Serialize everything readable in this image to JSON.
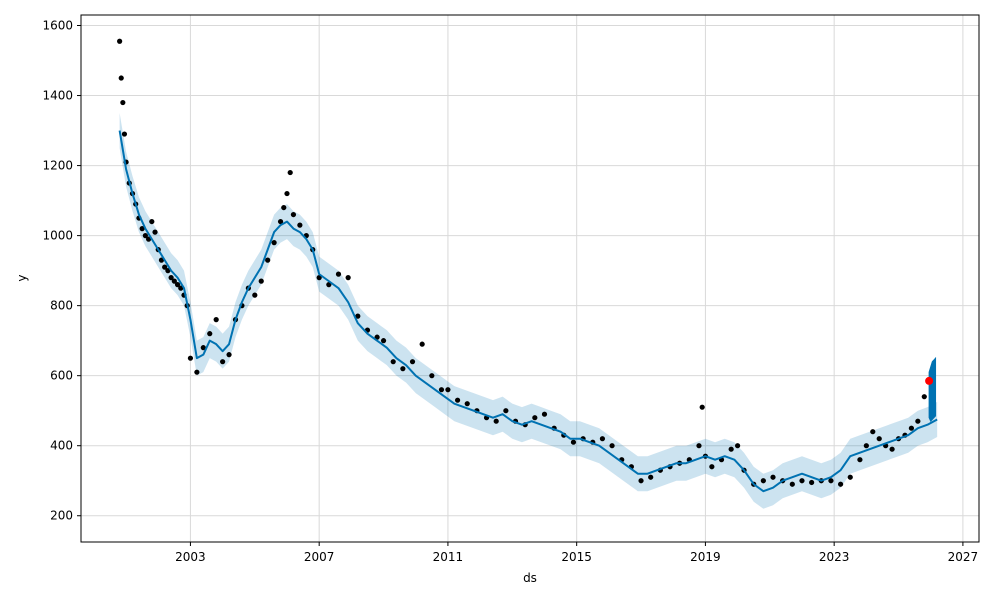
{
  "chart_data": {
    "type": "line",
    "title": "",
    "xlabel": "ds",
    "ylabel": "y",
    "xlim": [
      1999.6,
      2027.5
    ],
    "ylim": [
      125,
      1630
    ],
    "grid": true,
    "xticks": [
      2003,
      2007,
      2011,
      2015,
      2019,
      2023,
      2027
    ],
    "yticks": [
      200,
      400,
      600,
      800,
      1000,
      1200,
      1400,
      1600
    ],
    "colors": {
      "observed": "#000000",
      "forecast_line": "#0072b2",
      "interval_fill": "#0072b2",
      "highlight": "#ff0000"
    },
    "series": [
      {
        "kind": "observed_points",
        "x": [
          2000.8,
          2000.85,
          2000.9,
          2000.95,
          2001.0,
          2001.1,
          2001.2,
          2001.3,
          2001.4,
          2001.5,
          2001.6,
          2001.7,
          2001.8,
          2001.9,
          2002.0,
          2002.1,
          2002.2,
          2002.3,
          2002.4,
          2002.5,
          2002.6,
          2002.7,
          2002.8,
          2002.9,
          2003.0,
          2003.2,
          2003.4,
          2003.6,
          2003.8,
          2004.0,
          2004.2,
          2004.4,
          2004.6,
          2004.8,
          2005.0,
          2005.2,
          2005.4,
          2005.6,
          2005.8,
          2005.9,
          2006.0,
          2006.1,
          2006.2,
          2006.4,
          2006.6,
          2006.8,
          2007.0,
          2007.3,
          2007.6,
          2007.9,
          2008.2,
          2008.5,
          2008.8,
          2009.0,
          2009.3,
          2009.6,
          2009.9,
          2010.2,
          2010.5,
          2010.8,
          2011.0,
          2011.3,
          2011.6,
          2011.9,
          2012.2,
          2012.5,
          2012.8,
          2013.1,
          2013.4,
          2013.7,
          2014.0,
          2014.3,
          2014.6,
          2014.9,
          2015.2,
          2015.5,
          2015.8,
          2016.1,
          2016.4,
          2016.7,
          2017.0,
          2017.3,
          2017.6,
          2017.9,
          2018.2,
          2018.5,
          2018.8,
          2018.9,
          2019.0,
          2019.2,
          2019.5,
          2019.8,
          2020.0,
          2020.2,
          2020.5,
          2020.8,
          2021.1,
          2021.4,
          2021.7,
          2022.0,
          2022.3,
          2022.6,
          2022.9,
          2023.2,
          2023.5,
          2023.8,
          2024.0,
          2024.2,
          2024.4,
          2024.6,
          2024.8,
          2025.0,
          2025.2,
          2025.4,
          2025.6,
          2025.8,
          2026.0
        ],
        "y": [
          1555,
          1450,
          1380,
          1290,
          1210,
          1150,
          1120,
          1090,
          1050,
          1020,
          1000,
          990,
          1040,
          1010,
          960,
          930,
          910,
          900,
          880,
          870,
          860,
          850,
          830,
          800,
          650,
          610,
          680,
          720,
          760,
          640,
          660,
          760,
          800,
          850,
          830,
          870,
          930,
          980,
          1040,
          1080,
          1120,
          1180,
          1060,
          1030,
          1000,
          960,
          880,
          860,
          890,
          880,
          770,
          730,
          710,
          700,
          640,
          620,
          640,
          690,
          600,
          560,
          560,
          530,
          520,
          500,
          480,
          470,
          500,
          470,
          460,
          480,
          490,
          450,
          430,
          410,
          420,
          410,
          420,
          400,
          360,
          340,
          300,
          310,
          330,
          340,
          350,
          360,
          400,
          510,
          370,
          340,
          360,
          390,
          400,
          330,
          290,
          300,
          310,
          300,
          290,
          300,
          295,
          300,
          300,
          290,
          310,
          360,
          400,
          440,
          420,
          400,
          390,
          420,
          430,
          450,
          470,
          540,
          580
        ],
        "color": "#000000"
      },
      {
        "kind": "forecast_line",
        "x": [
          2000.8,
          2001.0,
          2001.2,
          2001.4,
          2001.6,
          2001.8,
          2002.0,
          2002.2,
          2002.4,
          2002.6,
          2002.8,
          2003.0,
          2003.2,
          2003.4,
          2003.6,
          2003.8,
          2004.0,
          2004.2,
          2004.4,
          2004.6,
          2004.8,
          2005.0,
          2005.2,
          2005.4,
          2005.6,
          2005.8,
          2006.0,
          2006.2,
          2006.4,
          2006.6,
          2006.8,
          2007.0,
          2007.3,
          2007.6,
          2007.9,
          2008.2,
          2008.5,
          2008.8,
          2009.1,
          2009.4,
          2009.7,
          2010.0,
          2010.3,
          2010.6,
          2010.9,
          2011.2,
          2011.5,
          2011.8,
          2012.1,
          2012.4,
          2012.7,
          2013.0,
          2013.3,
          2013.6,
          2013.9,
          2014.2,
          2014.5,
          2014.8,
          2015.1,
          2015.4,
          2015.7,
          2016.0,
          2016.3,
          2016.6,
          2016.9,
          2017.2,
          2017.5,
          2017.8,
          2018.1,
          2018.4,
          2018.7,
          2019.0,
          2019.3,
          2019.6,
          2019.9,
          2020.2,
          2020.5,
          2020.8,
          2021.1,
          2021.4,
          2021.7,
          2022.0,
          2022.3,
          2022.6,
          2022.9,
          2023.2,
          2023.5,
          2023.8,
          2024.1,
          2024.4,
          2024.7,
          2025.0,
          2025.3,
          2025.6,
          2025.9,
          2026.2
        ],
        "y": [
          1300,
          1190,
          1120,
          1060,
          1020,
          990,
          960,
          930,
          900,
          880,
          850,
          760,
          650,
          660,
          700,
          690,
          670,
          690,
          760,
          810,
          850,
          880,
          910,
          960,
          1010,
          1030,
          1040,
          1020,
          1010,
          990,
          960,
          890,
          870,
          850,
          810,
          750,
          720,
          700,
          680,
          650,
          630,
          600,
          580,
          560,
          540,
          520,
          510,
          500,
          490,
          480,
          490,
          470,
          460,
          470,
          460,
          450,
          440,
          420,
          420,
          410,
          400,
          380,
          360,
          340,
          320,
          320,
          330,
          340,
          350,
          350,
          360,
          370,
          360,
          370,
          360,
          330,
          290,
          270,
          280,
          300,
          310,
          320,
          310,
          300,
          310,
          330,
          370,
          380,
          390,
          400,
          410,
          420,
          430,
          450,
          460,
          475
        ],
        "color": "#0072b2"
      },
      {
        "kind": "uncertainty_interval",
        "x": [
          2000.8,
          2001.0,
          2001.2,
          2001.4,
          2001.6,
          2001.8,
          2002.0,
          2002.2,
          2002.4,
          2002.6,
          2002.8,
          2003.0,
          2003.2,
          2003.4,
          2003.6,
          2003.8,
          2004.0,
          2004.2,
          2004.4,
          2004.6,
          2004.8,
          2005.0,
          2005.2,
          2005.4,
          2005.6,
          2005.8,
          2006.0,
          2006.2,
          2006.4,
          2006.6,
          2006.8,
          2007.0,
          2007.3,
          2007.6,
          2007.9,
          2008.2,
          2008.5,
          2008.8,
          2009.1,
          2009.4,
          2009.7,
          2010.0,
          2010.3,
          2010.6,
          2010.9,
          2011.2,
          2011.5,
          2011.8,
          2012.1,
          2012.4,
          2012.7,
          2013.0,
          2013.3,
          2013.6,
          2013.9,
          2014.2,
          2014.5,
          2014.8,
          2015.1,
          2015.4,
          2015.7,
          2016.0,
          2016.3,
          2016.6,
          2016.9,
          2017.2,
          2017.5,
          2017.8,
          2018.1,
          2018.4,
          2018.7,
          2019.0,
          2019.3,
          2019.6,
          2019.9,
          2020.2,
          2020.5,
          2020.8,
          2021.1,
          2021.4,
          2021.7,
          2022.0,
          2022.3,
          2022.6,
          2022.9,
          2023.2,
          2023.5,
          2023.8,
          2024.1,
          2024.4,
          2024.7,
          2025.0,
          2025.3,
          2025.6,
          2025.9,
          2026.2
        ],
        "lower": [
          1250,
          1140,
          1070,
          1010,
          970,
          940,
          910,
          880,
          850,
          830,
          800,
          710,
          600,
          610,
          650,
          640,
          620,
          640,
          710,
          760,
          800,
          830,
          860,
          910,
          960,
          980,
          990,
          970,
          960,
          940,
          910,
          840,
          820,
          800,
          760,
          700,
          670,
          650,
          630,
          600,
          580,
          550,
          530,
          510,
          490,
          470,
          460,
          450,
          440,
          430,
          440,
          420,
          410,
          420,
          410,
          400,
          390,
          370,
          370,
          360,
          350,
          330,
          310,
          290,
          270,
          270,
          280,
          290,
          300,
          300,
          310,
          320,
          310,
          320,
          310,
          280,
          240,
          220,
          230,
          250,
          260,
          270,
          260,
          250,
          260,
          280,
          320,
          330,
          340,
          350,
          360,
          370,
          380,
          400,
          410,
          425
        ],
        "upper": [
          1350,
          1240,
          1170,
          1110,
          1070,
          1040,
          1010,
          980,
          950,
          930,
          900,
          810,
          700,
          710,
          750,
          740,
          720,
          740,
          810,
          860,
          900,
          930,
          960,
          1010,
          1060,
          1080,
          1090,
          1070,
          1060,
          1040,
          1010,
          940,
          920,
          900,
          860,
          800,
          770,
          750,
          730,
          700,
          680,
          650,
          630,
          610,
          590,
          570,
          560,
          550,
          540,
          530,
          540,
          520,
          510,
          520,
          510,
          500,
          490,
          470,
          470,
          460,
          450,
          430,
          410,
          390,
          370,
          370,
          380,
          390,
          400,
          400,
          410,
          420,
          410,
          420,
          410,
          380,
          340,
          320,
          330,
          350,
          360,
          370,
          360,
          350,
          360,
          380,
          420,
          430,
          440,
          450,
          460,
          470,
          480,
          500,
          510,
          525
        ],
        "color": "#0072b2"
      },
      {
        "kind": "forecast_band",
        "x": [
          2025.95,
          2026.0,
          2026.05,
          2026.1,
          2026.15
        ],
        "lower": [
          480,
          470,
          475,
          480,
          485
        ],
        "upper": [
          610,
          625,
          640,
          645,
          650
        ],
        "color": "#0072b2"
      },
      {
        "kind": "highlight_point",
        "x": [
          2025.95
        ],
        "y": [
          585
        ],
        "color": "#ff0000"
      }
    ]
  }
}
